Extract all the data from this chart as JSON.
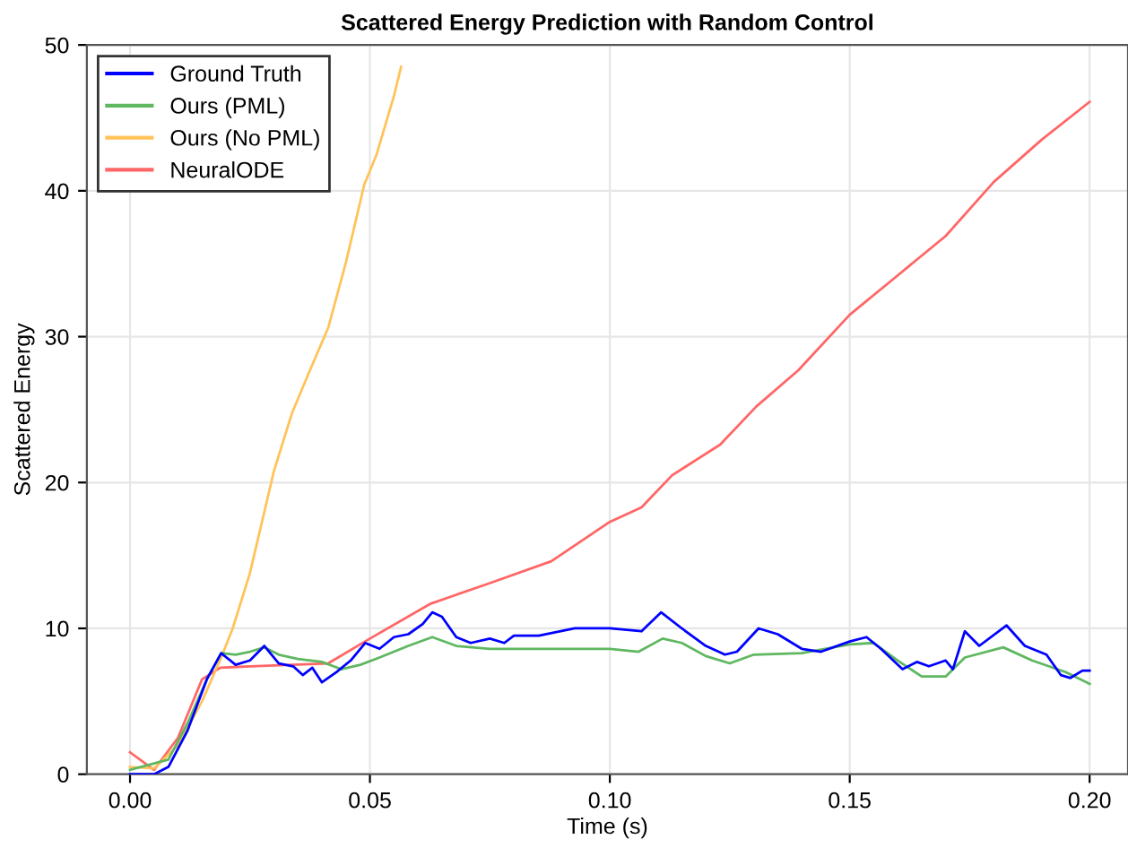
{
  "chart_data": {
    "type": "line",
    "title": "Scattered Energy Prediction with Random Control",
    "xlabel": "Time (s)",
    "ylabel": "Scattered Energy",
    "xlim": [
      -0.009,
      0.208
    ],
    "ylim": [
      0,
      50
    ],
    "xticks": [
      {
        "value": 0,
        "label": "0.00"
      },
      {
        "value": 0.05,
        "label": "0.05"
      },
      {
        "value": 0.1,
        "label": "0.10"
      },
      {
        "value": 0.15,
        "label": "0.15"
      },
      {
        "value": 0.2,
        "label": "0.20"
      }
    ],
    "yticks": [
      0,
      10,
      20,
      30,
      40,
      50
    ],
    "grid": true,
    "legend": "top left",
    "series": [
      {
        "name": "Ground Truth",
        "color": "#0000ff",
        "x": [
          0,
          0.005,
          0.008,
          0.012,
          0.016,
          0.019,
          0.022,
          0.025,
          0.028,
          0.031,
          0.034,
          0.036,
          0.038,
          0.04,
          0.043,
          0.046,
          0.049,
          0.052,
          0.055,
          0.058,
          0.061,
          0.063,
          0.065,
          0.068,
          0.071,
          0.075,
          0.078,
          0.08,
          0.0852,
          0.0927,
          0.1,
          0.1066,
          0.1107,
          0.115,
          0.12,
          0.124,
          0.1265,
          0.131,
          0.135,
          0.14,
          0.144,
          0.15,
          0.1535,
          0.1565,
          0.161,
          0.164,
          0.1665,
          0.17,
          0.1715,
          0.174,
          0.177,
          0.1827,
          0.1865,
          0.191,
          0.194,
          0.196,
          0.1985,
          0.2
        ],
        "values": [
          0,
          0,
          0.5,
          3,
          6.5,
          8.3,
          7.5,
          7.8,
          8.8,
          7.6,
          7.4,
          6.8,
          7.3,
          6.3,
          7.0,
          7.8,
          9.0,
          8.6,
          9.4,
          9.6,
          10.3,
          11.1,
          10.8,
          9.4,
          9.0,
          9.3,
          9.0,
          9.5,
          9.5,
          10.0,
          10.0,
          9.8,
          11.1,
          10.0,
          8.8,
          8.2,
          8.4,
          10.0,
          9.6,
          8.6,
          8.4,
          9.1,
          9.4,
          8.6,
          7.2,
          7.7,
          7.4,
          7.8,
          7.2,
          9.8,
          8.8,
          10.2,
          8.8,
          8.2,
          6.8,
          6.6,
          7.1,
          7.1
        ]
      },
      {
        "name": "Ours (PML)",
        "color": "#5fb760",
        "x": [
          0,
          0.008,
          0.012,
          0.016,
          0.019,
          0.022,
          0.025,
          0.028,
          0.031,
          0.035,
          0.04,
          0.044,
          0.048,
          0.052,
          0.058,
          0.063,
          0.068,
          0.075,
          0.085,
          0.092,
          0.1,
          0.106,
          0.111,
          0.115,
          0.12,
          0.125,
          0.13,
          0.14,
          0.15,
          0.155,
          0.16,
          0.165,
          0.17,
          0.174,
          0.182,
          0.188,
          0.195,
          0.2
        ],
        "values": [
          0.3,
          1,
          3.5,
          6.5,
          8.3,
          8.2,
          8.4,
          8.7,
          8.2,
          7.9,
          7.7,
          7.2,
          7.5,
          8.0,
          8.8,
          9.4,
          8.8,
          8.6,
          8.6,
          8.6,
          8.6,
          8.4,
          9.3,
          9.0,
          8.1,
          7.6,
          8.2,
          8.3,
          8.9,
          9.0,
          7.8,
          6.7,
          6.7,
          8.0,
          8.7,
          7.8,
          7.0,
          6.2
        ]
      },
      {
        "name": "Ours (No PML)",
        "color": "#ffc35a",
        "x": [
          0,
          0.005,
          0.01,
          0.015,
          0.019,
          0.0214,
          0.025,
          0.03,
          0.0338,
          0.0375,
          0.0413,
          0.045,
          0.0488,
          0.0514,
          0.055,
          0.0565
        ],
        "values": [
          0.5,
          0.4,
          2,
          5,
          8,
          10,
          13.8,
          20.8,
          24.8,
          27.7,
          30.6,
          35.1,
          40.4,
          42.5,
          46.5,
          48.5
        ]
      },
      {
        "name": "NeuralODE",
        "color": "#ff6666",
        "x": [
          0,
          0.005,
          0.01,
          0.015,
          0.0188,
          0.025,
          0.0413,
          0.05,
          0.0627,
          0.075,
          0.0878,
          0.1,
          0.1066,
          0.113,
          0.123,
          0.1305,
          0.1393,
          0.15,
          0.16,
          0.17,
          0.18,
          0.19,
          0.2
        ],
        "values": [
          1.5,
          0.3,
          2.5,
          6.5,
          7.3,
          7.4,
          7.6,
          9.3,
          11.7,
          13.1,
          14.6,
          17.3,
          18.3,
          20.5,
          22.6,
          25.2,
          27.7,
          31.5,
          34.2,
          36.9,
          40.6,
          43.5,
          46.1
        ]
      }
    ]
  }
}
